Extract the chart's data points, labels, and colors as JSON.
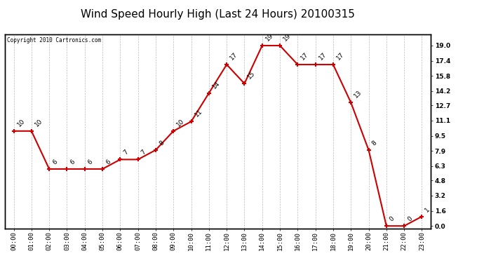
{
  "title": "Wind Speed Hourly High (Last 24 Hours) 20100315",
  "copyright": "Copyright 2010 Cartronics.com",
  "hours": [
    "00:00",
    "01:00",
    "02:00",
    "03:00",
    "04:00",
    "05:00",
    "06:00",
    "07:00",
    "08:00",
    "09:00",
    "10:00",
    "11:00",
    "12:00",
    "13:00",
    "14:00",
    "15:00",
    "16:00",
    "17:00",
    "18:00",
    "19:00",
    "20:00",
    "21:00",
    "22:00",
    "23:00"
  ],
  "values": [
    10,
    10,
    6,
    6,
    6,
    6,
    7,
    7,
    8,
    10,
    11,
    14,
    17,
    15,
    19,
    19,
    17,
    17,
    17,
    13,
    8,
    0,
    0,
    1
  ],
  "line_color": "#cc0000",
  "marker_color": "#cc0000",
  "bg_color": "#ffffff",
  "plot_bg_color": "#ffffff",
  "grid_color": "#aaaaaa",
  "title_fontsize": 11,
  "tick_fontsize": 6.5,
  "anno_fontsize": 6.5,
  "ylim": [
    -0.3,
    20.2
  ],
  "yticks_right": [
    0.0,
    1.6,
    3.2,
    4.8,
    6.3,
    7.9,
    9.5,
    11.1,
    12.7,
    14.2,
    15.8,
    17.4,
    19.0
  ],
  "border_color": "#000000"
}
